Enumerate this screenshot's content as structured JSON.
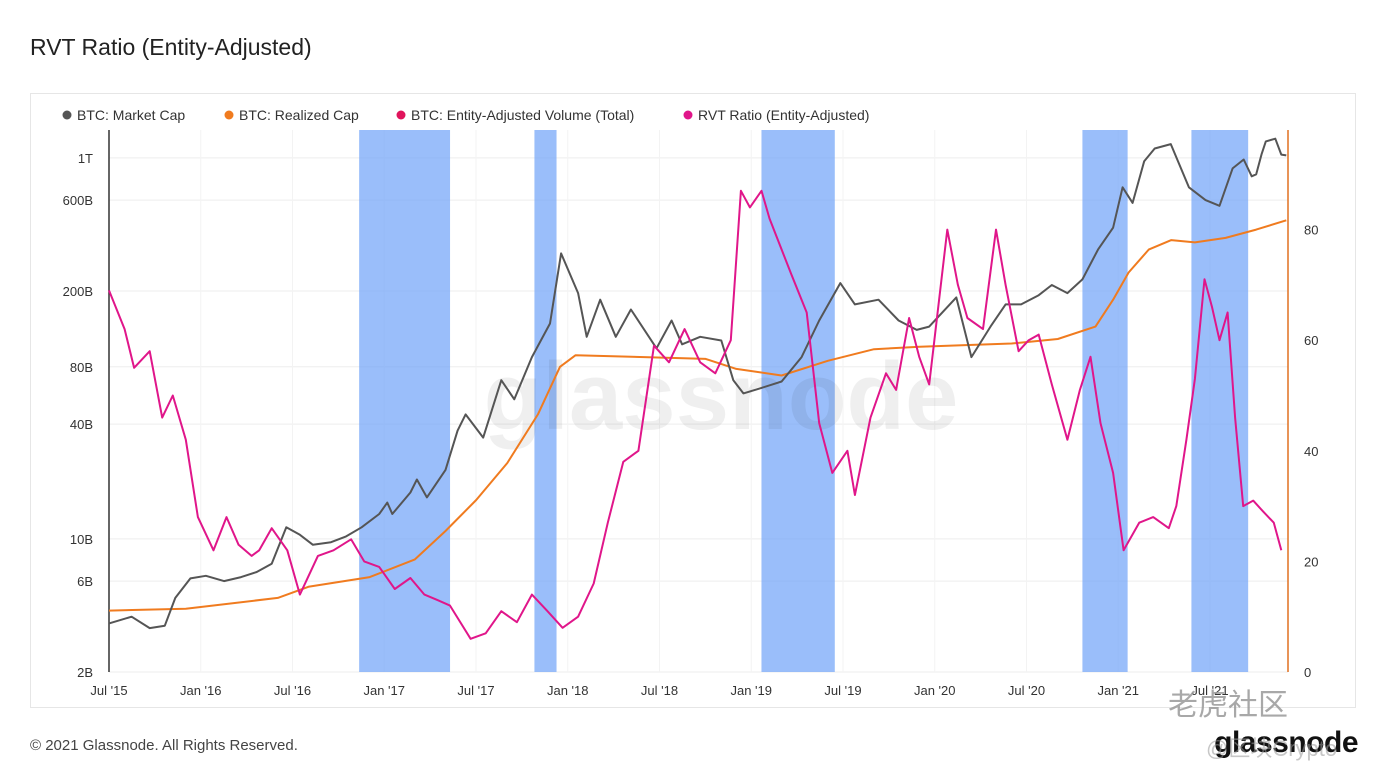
{
  "title": "RVT Ratio (Entity-Adjusted)",
  "footer": "© 2021 Glassnode. All Rights Reserved.",
  "brand": "glassnode",
  "watermark_center": "glassnode",
  "watermark_corner": "老虎社区",
  "watermark_corner_user": "@区块Crypto",
  "colors": {
    "market_cap": "#555555",
    "realized_cap": "#f07b1f",
    "volume": "#e0145c",
    "rvt": "#e0168a",
    "band": "#6fa3f8"
  },
  "chart_data": {
    "type": "line",
    "legend": [
      {
        "name": "BTC: Market Cap",
        "color": "#555555",
        "active": true
      },
      {
        "name": "BTC: Realized Cap",
        "color": "#f07b1f",
        "active": true
      },
      {
        "name": "BTC: Entity-Adjusted Volume (Total)",
        "color": "#e0145c",
        "active": false
      },
      {
        "name": "RVT Ratio (Entity-Adjusted)",
        "color": "#e0168a",
        "active": true
      }
    ],
    "legend_position": "top-left",
    "x_ticks": [
      "Jul '15",
      "Jan '16",
      "Jul '16",
      "Jan '17",
      "Jul '17",
      "Jan '18",
      "Jul '18",
      "Jan '19",
      "Jul '19",
      "Jan '20",
      "Jul '20",
      "Jan '21",
      "Jul '21"
    ],
    "x_range": [
      "2015-07-01",
      "2021-10-01"
    ],
    "y_left": {
      "scale": "log",
      "ticks": [
        "2B",
        "6B",
        "10B",
        "40B",
        "80B",
        "200B",
        "600B",
        "1T"
      ],
      "tick_values": [
        2000000000.0,
        6000000000.0,
        10000000000.0,
        40000000000.0,
        80000000000.0,
        200000000000.0,
        600000000000.0,
        1000000000000.0
      ],
      "range": [
        2000000000.0,
        1400000000000.0
      ]
    },
    "y_right": {
      "scale": "linear",
      "ticks": [
        "0",
        "20",
        "40",
        "60",
        "80"
      ],
      "tick_values": [
        0,
        20,
        40,
        60,
        80
      ],
      "range": [
        0,
        98
      ]
    },
    "grid": true,
    "highlight_bands": [
      [
        "2016-11-10",
        "2017-05-10"
      ],
      [
        "2017-10-25",
        "2017-12-08"
      ],
      [
        "2019-01-20",
        "2019-06-15"
      ],
      [
        "2020-10-20",
        "2021-01-18"
      ],
      [
        "2021-05-25",
        "2021-09-15"
      ]
    ],
    "series": [
      {
        "name": "BTC: Market Cap",
        "axis": "left",
        "points": [
          [
            "2015-07-01",
            3600000000.0
          ],
          [
            "2015-08-15",
            3900000000.0
          ],
          [
            "2015-09-20",
            3400000000.0
          ],
          [
            "2015-10-20",
            3500000000.0
          ],
          [
            "2015-11-10",
            4900000000.0
          ],
          [
            "2015-12-10",
            6200000000.0
          ],
          [
            "2016-01-10",
            6400000000.0
          ],
          [
            "2016-02-15",
            6000000000.0
          ],
          [
            "2016-03-20",
            6300000000.0
          ],
          [
            "2016-04-20",
            6700000000.0
          ],
          [
            "2016-05-20",
            7400000000.0
          ],
          [
            "2016-06-18",
            11500000000.0
          ],
          [
            "2016-07-15",
            10500000000.0
          ],
          [
            "2016-08-10",
            9300000000.0
          ],
          [
            "2016-09-15",
            9600000000.0
          ],
          [
            "2016-10-15",
            10300000000.0
          ],
          [
            "2016-11-15",
            11500000000.0
          ],
          [
            "2016-12-20",
            13500000000.0
          ],
          [
            "2017-01-05",
            15500000000.0
          ],
          [
            "2017-01-15",
            13500000000.0
          ],
          [
            "2017-02-20",
            17500000000.0
          ],
          [
            "2017-03-05",
            20500000000.0
          ],
          [
            "2017-03-25",
            16500000000.0
          ],
          [
            "2017-05-01",
            23000000000.0
          ],
          [
            "2017-05-25",
            37000000000.0
          ],
          [
            "2017-06-10",
            45000000000.0
          ],
          [
            "2017-07-15",
            34000000000.0
          ],
          [
            "2017-08-20",
            68000000000.0
          ],
          [
            "2017-09-15",
            54000000000.0
          ],
          [
            "2017-10-20",
            90000000000.0
          ],
          [
            "2017-11-25",
            135000000000.0
          ],
          [
            "2017-12-17",
            315000000000.0
          ],
          [
            "2018-01-20",
            195000000000.0
          ],
          [
            "2018-02-06",
            115000000000.0
          ],
          [
            "2018-03-05",
            180000000000.0
          ],
          [
            "2018-04-05",
            115000000000.0
          ],
          [
            "2018-05-05",
            160000000000.0
          ],
          [
            "2018-06-25",
            100000000000.0
          ],
          [
            "2018-07-25",
            140000000000.0
          ],
          [
            "2018-08-15",
            105000000000.0
          ],
          [
            "2018-09-20",
            115000000000.0
          ],
          [
            "2018-11-01",
            110000000000.0
          ],
          [
            "2018-11-25",
            68000000000.0
          ],
          [
            "2018-12-15",
            58000000000.0
          ],
          [
            "2019-01-20",
            62000000000.0
          ],
          [
            "2019-03-01",
            67000000000.0
          ],
          [
            "2019-04-10",
            90000000000.0
          ],
          [
            "2019-05-15",
            140000000000.0
          ],
          [
            "2019-06-26",
            220000000000.0
          ],
          [
            "2019-07-25",
            170000000000.0
          ],
          [
            "2019-09-10",
            180000000000.0
          ],
          [
            "2019-10-20",
            140000000000.0
          ],
          [
            "2019-11-25",
            125000000000.0
          ],
          [
            "2019-12-20",
            130000000000.0
          ],
          [
            "2020-02-12",
            185000000000.0
          ],
          [
            "2020-03-13",
            90000000000.0
          ],
          [
            "2020-04-20",
            130000000000.0
          ],
          [
            "2020-05-20",
            170000000000.0
          ],
          [
            "2020-06-20",
            170000000000.0
          ],
          [
            "2020-07-25",
            190000000000.0
          ],
          [
            "2020-08-20",
            215000000000.0
          ],
          [
            "2020-09-20",
            195000000000.0
          ],
          [
            "2020-10-20",
            230000000000.0
          ],
          [
            "2020-11-20",
            330000000000.0
          ],
          [
            "2020-12-20",
            430000000000.0
          ],
          [
            "2021-01-08",
            700000000000.0
          ],
          [
            "2021-01-28",
            580000000000.0
          ],
          [
            "2021-02-20",
            960000000000.0
          ],
          [
            "2021-03-13",
            1120000000000.0
          ],
          [
            "2021-04-14",
            1180000000000.0
          ],
          [
            "2021-05-20",
            700000000000.0
          ],
          [
            "2021-06-22",
            600000000000.0
          ],
          [
            "2021-07-20",
            560000000000.0
          ],
          [
            "2021-08-15",
            880000000000.0
          ],
          [
            "2021-09-06",
            980000000000.0
          ],
          [
            "2021-09-22",
            800000000000.0
          ],
          [
            "2021-10-01",
            820000000000.0
          ],
          [
            "2021-10-12",
            1050000000000.0
          ],
          [
            "2021-10-20",
            1220000000000.0
          ],
          [
            "2021-11-08",
            1260000000000.0
          ],
          [
            "2021-11-20",
            1040000000000.0
          ],
          [
            "2021-11-30",
            1030000000000.0
          ]
        ]
      },
      {
        "name": "BTC: Realized Cap",
        "axis": "left",
        "points": [
          [
            "2015-07-01",
            4200000000.0
          ],
          [
            "2015-12-01",
            4300000000.0
          ],
          [
            "2016-06-01",
            4900000000.0
          ],
          [
            "2016-08-01",
            5600000000.0
          ],
          [
            "2016-12-01",
            6300000000.0
          ],
          [
            "2017-03-01",
            7800000000.0
          ],
          [
            "2017-05-01",
            11000000000.0
          ],
          [
            "2017-07-01",
            16000000000.0
          ],
          [
            "2017-09-01",
            25000000000.0
          ],
          [
            "2017-11-01",
            45000000000.0
          ],
          [
            "2017-12-15",
            80000000000.0
          ],
          [
            "2018-01-15",
            92000000000.0
          ],
          [
            "2018-06-01",
            90000000000.0
          ],
          [
            "2018-10-01",
            88000000000.0
          ],
          [
            "2018-12-01",
            78000000000.0
          ],
          [
            "2019-03-01",
            72000000000.0
          ],
          [
            "2019-06-01",
            86000000000.0
          ],
          [
            "2019-09-01",
            99000000000.0
          ],
          [
            "2019-12-01",
            102000000000.0
          ],
          [
            "2020-03-01",
            104000000000.0
          ],
          [
            "2020-06-01",
            106000000000.0
          ],
          [
            "2020-09-01",
            112000000000.0
          ],
          [
            "2020-11-15",
            130000000000.0
          ],
          [
            "2020-12-20",
            180000000000.0
          ],
          [
            "2021-01-20",
            250000000000.0
          ],
          [
            "2021-03-01",
            330000000000.0
          ],
          [
            "2021-04-15",
            370000000000.0
          ],
          [
            "2021-06-01",
            360000000000.0
          ],
          [
            "2021-08-01",
            380000000000.0
          ],
          [
            "2021-10-01",
            420000000000.0
          ],
          [
            "2021-11-30",
            470000000000.0
          ]
        ]
      },
      {
        "name": "RVT Ratio (Entity-Adjusted)",
        "axis": "right",
        "points": [
          [
            "2015-07-01",
            69
          ],
          [
            "2015-08-01",
            62
          ],
          [
            "2015-08-20",
            55
          ],
          [
            "2015-09-20",
            58
          ],
          [
            "2015-10-15",
            46
          ],
          [
            "2015-11-05",
            50
          ],
          [
            "2015-12-01",
            42
          ],
          [
            "2015-12-25",
            28
          ],
          [
            "2016-01-25",
            22
          ],
          [
            "2016-02-20",
            28
          ],
          [
            "2016-03-15",
            23
          ],
          [
            "2016-04-10",
            21
          ],
          [
            "2016-04-25",
            22
          ],
          [
            "2016-05-20",
            26
          ],
          [
            "2016-06-20",
            22
          ],
          [
            "2016-07-15",
            14
          ],
          [
            "2016-08-20",
            21
          ],
          [
            "2016-09-20",
            22
          ],
          [
            "2016-10-25",
            24
          ],
          [
            "2016-11-20",
            20
          ],
          [
            "2016-12-20",
            19
          ],
          [
            "2017-01-20",
            15
          ],
          [
            "2017-02-20",
            17
          ],
          [
            "2017-03-20",
            14
          ],
          [
            "2017-04-15",
            13
          ],
          [
            "2017-05-10",
            12
          ],
          [
            "2017-06-20",
            6
          ],
          [
            "2017-07-20",
            7
          ],
          [
            "2017-08-20",
            11
          ],
          [
            "2017-09-20",
            9
          ],
          [
            "2017-10-20",
            14
          ],
          [
            "2017-11-20",
            11
          ],
          [
            "2017-12-20",
            8
          ],
          [
            "2018-01-20",
            10
          ],
          [
            "2018-02-20",
            16
          ],
          [
            "2018-03-20",
            27
          ],
          [
            "2018-04-20",
            38
          ],
          [
            "2018-05-20",
            40
          ],
          [
            "2018-06-20",
            59
          ],
          [
            "2018-07-20",
            56
          ],
          [
            "2018-08-20",
            62
          ],
          [
            "2018-09-20",
            56
          ],
          [
            "2018-10-20",
            54
          ],
          [
            "2018-11-20",
            60
          ],
          [
            "2018-12-10",
            87
          ],
          [
            "2018-12-28",
            84
          ],
          [
            "2019-01-20",
            87
          ],
          [
            "2019-02-05",
            82
          ],
          [
            "2019-03-20",
            72
          ],
          [
            "2019-04-20",
            65
          ],
          [
            "2019-05-15",
            45
          ],
          [
            "2019-06-10",
            36
          ],
          [
            "2019-07-10",
            40
          ],
          [
            "2019-07-25",
            32
          ],
          [
            "2019-08-25",
            46
          ],
          [
            "2019-09-25",
            54
          ],
          [
            "2019-10-15",
            51
          ],
          [
            "2019-11-10",
            64
          ],
          [
            "2019-11-30",
            57
          ],
          [
            "2019-12-20",
            52
          ],
          [
            "2020-01-25",
            80
          ],
          [
            "2020-02-15",
            70
          ],
          [
            "2020-03-05",
            64
          ],
          [
            "2020-04-05",
            62
          ],
          [
            "2020-05-01",
            80
          ],
          [
            "2020-05-20",
            70
          ],
          [
            "2020-06-15",
            58
          ],
          [
            "2020-07-05",
            60
          ],
          [
            "2020-07-25",
            61
          ],
          [
            "2020-08-20",
            52
          ],
          [
            "2020-09-20",
            42
          ],
          [
            "2020-10-15",
            51
          ],
          [
            "2020-11-05",
            57
          ],
          [
            "2020-11-25",
            45
          ],
          [
            "2020-12-20",
            36
          ],
          [
            "2021-01-10",
            22
          ],
          [
            "2021-02-10",
            27
          ],
          [
            "2021-03-10",
            28
          ],
          [
            "2021-04-10",
            26
          ],
          [
            "2021-04-25",
            30
          ],
          [
            "2021-05-15",
            42
          ],
          [
            "2021-06-01",
            53
          ],
          [
            "2021-06-20",
            71
          ],
          [
            "2021-07-05",
            66
          ],
          [
            "2021-07-20",
            60
          ],
          [
            "2021-08-05",
            65
          ],
          [
            "2021-08-20",
            46
          ],
          [
            "2021-09-05",
            30
          ],
          [
            "2021-09-25",
            31
          ],
          [
            "2021-10-15",
            29
          ],
          [
            "2021-11-05",
            27
          ],
          [
            "2021-11-20",
            22
          ]
        ]
      }
    ]
  }
}
